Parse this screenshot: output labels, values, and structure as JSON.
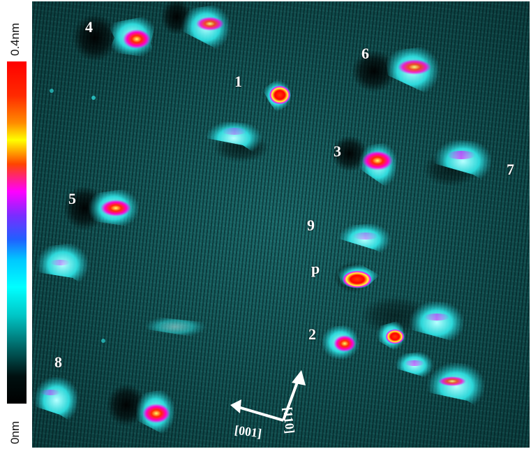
{
  "colorbar": {
    "max_label": "0.4nm",
    "min_label": "0nm"
  },
  "molecules": [
    {
      "id": "1",
      "label": "1"
    },
    {
      "id": "2",
      "label": "2"
    },
    {
      "id": "3",
      "label": "3"
    },
    {
      "id": "4",
      "label": "4"
    },
    {
      "id": "5",
      "label": "5"
    },
    {
      "id": "6",
      "label": "6"
    },
    {
      "id": "7",
      "label": "7"
    },
    {
      "id": "8",
      "label": "8"
    },
    {
      "id": "9",
      "label": "9"
    },
    {
      "id": "p",
      "label": "p"
    }
  ],
  "axes": {
    "horizontal": "[001]",
    "vertical": "[110]"
  },
  "colors": {
    "substrate": "#0f4a4a",
    "cyan": "#22e8e8",
    "magenta": "#ff00ff",
    "red": "#ff1a1a",
    "yellow": "#ffff33"
  }
}
